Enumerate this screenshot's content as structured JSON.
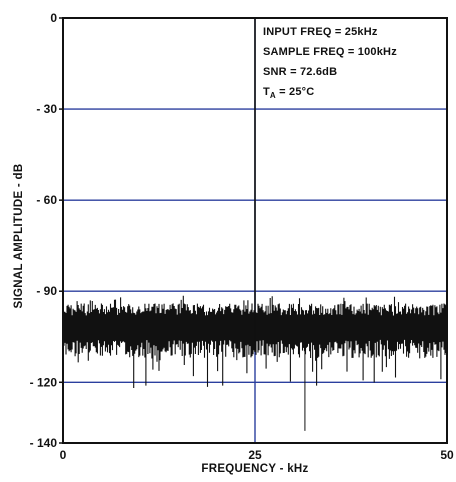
{
  "chart_data": {
    "type": "line",
    "title": "",
    "xlabel": "FREQUENCY - kHz",
    "ylabel": "SIGNAL AMPLITUDE - dB",
    "xlim": [
      0,
      50
    ],
    "ylim": [
      -140,
      0
    ],
    "x_ticks": [
      0,
      25,
      50
    ],
    "x_tick_labels": [
      "0",
      "25",
      "50"
    ],
    "y_ticks": [
      0,
      -30,
      -60,
      -90,
      -120,
      -140
    ],
    "y_tick_labels": [
      "0",
      "- 30",
      "- 60",
      "- 90",
      "- 120",
      "- 140"
    ],
    "grid": true,
    "annotations": [
      "INPUT FREQ = 25kHz",
      "SAMPLE FREQ = 100kHz",
      "SNR = 72.6dB",
      "TA = 25°C"
    ],
    "series": [
      {
        "signal_peak": {
          "x": 25,
          "y": 0
        },
        "noise_floor_band": {
          "y_min": -110,
          "y_max": -94
        },
        "noise_spike_min": -122,
        "spur": {
          "x": 31.5,
          "y": -136
        }
      }
    ]
  },
  "colors": {
    "grid": "#2b3f9e",
    "trace": "#111111",
    "frame": "#111111"
  }
}
